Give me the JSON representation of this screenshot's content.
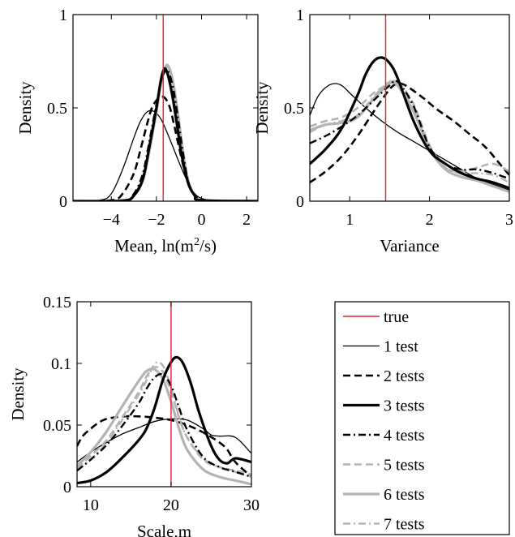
{
  "chart_data": [
    {
      "type": "line",
      "title": "",
      "xlabel": "Mean, ln(m",
      "xlabel_sup": "2",
      "xlabel_tail": "/s)",
      "ylabel": "Density",
      "xlim": [
        -5.7,
        2.5
      ],
      "ylim": [
        0,
        1
      ],
      "xticks": [
        -4,
        -2,
        0,
        2
      ],
      "xtick_labels": [
        "−4",
        "−2",
        "0",
        "2"
      ],
      "yticks": [
        0,
        0.5,
        1
      ],
      "ytick_labels": [
        "0",
        "0.5",
        "1"
      ],
      "true_value": -1.7,
      "series": [
        {
          "name": "1 test",
          "x": [
            -5.7,
            -4.5,
            -4.0,
            -3.5,
            -3.0,
            -2.7,
            -2.4,
            -2.1,
            -1.8,
            -1.5,
            -1.2,
            -0.9,
            -0.6,
            -0.3,
            0.0,
            0.5,
            1.0,
            2.5
          ],
          "y": [
            0,
            0.005,
            0.04,
            0.17,
            0.34,
            0.43,
            0.48,
            0.48,
            0.44,
            0.36,
            0.27,
            0.18,
            0.1,
            0.04,
            0.015,
            0.003,
            0,
            0
          ]
        },
        {
          "name": "2 tests",
          "x": [
            -5.7,
            -4.0,
            -3.5,
            -3.0,
            -2.7,
            -2.4,
            -2.2,
            -2.0,
            -1.8,
            -1.6,
            -1.4,
            -1.2,
            -1.0,
            -0.7,
            -0.4,
            0.0,
            0.5,
            2.5
          ],
          "y": [
            0,
            0.005,
            0.04,
            0.15,
            0.28,
            0.42,
            0.5,
            0.54,
            0.56,
            0.55,
            0.5,
            0.4,
            0.29,
            0.14,
            0.05,
            0.01,
            0,
            0
          ]
        },
        {
          "name": "3 tests",
          "x": [
            -5.7,
            -3.5,
            -3.0,
            -2.6,
            -2.3,
            -2.0,
            -1.8,
            -1.65,
            -1.5,
            -1.3,
            -1.1,
            -0.9,
            -0.6,
            -0.3,
            0.0,
            2.5
          ],
          "y": [
            0,
            0.003,
            0.03,
            0.12,
            0.3,
            0.5,
            0.65,
            0.71,
            0.68,
            0.57,
            0.42,
            0.26,
            0.1,
            0.03,
            0.005,
            0
          ]
        },
        {
          "name": "4 tests",
          "x": [
            -5.7,
            -3.5,
            -3.0,
            -2.6,
            -2.3,
            -2.0,
            -1.8,
            -1.6,
            -1.45,
            -1.25,
            -1.05,
            -0.85,
            -0.6,
            -0.3,
            0.0,
            2.5
          ],
          "y": [
            0,
            0.004,
            0.04,
            0.15,
            0.33,
            0.52,
            0.64,
            0.7,
            0.69,
            0.6,
            0.45,
            0.28,
            0.11,
            0.03,
            0.005,
            0
          ]
        },
        {
          "name": "5 tests",
          "x": [
            -5.7,
            -3.5,
            -3.0,
            -2.6,
            -2.3,
            -2.0,
            -1.8,
            -1.6,
            -1.45,
            -1.25,
            -1.05,
            -0.85,
            -0.6,
            -0.3,
            0.0,
            2.5
          ],
          "y": [
            0,
            0.003,
            0.035,
            0.13,
            0.3,
            0.49,
            0.63,
            0.71,
            0.71,
            0.62,
            0.46,
            0.29,
            0.12,
            0.03,
            0.005,
            0
          ]
        },
        {
          "name": "6 tests",
          "x": [
            -5.7,
            -3.5,
            -3.0,
            -2.6,
            -2.3,
            -2.0,
            -1.8,
            -1.6,
            -1.45,
            -1.25,
            -1.05,
            -0.85,
            -0.6,
            -0.3,
            0.0,
            2.5
          ],
          "y": [
            0,
            0.002,
            0.03,
            0.11,
            0.28,
            0.48,
            0.63,
            0.72,
            0.72,
            0.63,
            0.47,
            0.29,
            0.11,
            0.03,
            0.004,
            0
          ]
        },
        {
          "name": "7 tests",
          "x": [
            -5.7,
            -3.5,
            -3.0,
            -2.6,
            -2.3,
            -2.0,
            -1.8,
            -1.6,
            -1.45,
            -1.25,
            -1.05,
            -0.85,
            -0.6,
            -0.3,
            0.0,
            2.5
          ],
          "y": [
            0,
            0.003,
            0.03,
            0.12,
            0.29,
            0.49,
            0.64,
            0.72,
            0.72,
            0.63,
            0.47,
            0.29,
            0.11,
            0.03,
            0.005,
            0
          ]
        }
      ]
    },
    {
      "type": "line",
      "title": "",
      "xlabel": "Variance",
      "ylabel": "Density",
      "xlim": [
        0.5,
        3.0
      ],
      "ylim": [
        0,
        1
      ],
      "xticks": [
        1,
        2,
        3
      ],
      "xtick_labels": [
        "1",
        "2",
        "3"
      ],
      "yticks": [
        0,
        0.5,
        1
      ],
      "ytick_labels": [
        "0",
        "0.5",
        "1"
      ],
      "true_value": 1.45,
      "series": [
        {
          "name": "1 test",
          "x": [
            0.5,
            0.6,
            0.7,
            0.8,
            0.9,
            1.0,
            1.2,
            1.4,
            1.6,
            1.8,
            2.0,
            2.2,
            2.4,
            2.6,
            2.8,
            3.0
          ],
          "y": [
            0.46,
            0.56,
            0.61,
            0.63,
            0.62,
            0.58,
            0.5,
            0.43,
            0.37,
            0.32,
            0.27,
            0.22,
            0.17,
            0.12,
            0.09,
            0.06
          ]
        },
        {
          "name": "2 tests",
          "x": [
            0.5,
            0.7,
            0.9,
            1.1,
            1.3,
            1.5,
            1.6,
            1.7,
            1.9,
            2.1,
            2.3,
            2.5,
            2.7,
            2.9,
            3.0
          ],
          "y": [
            0.1,
            0.16,
            0.24,
            0.35,
            0.48,
            0.6,
            0.63,
            0.62,
            0.56,
            0.49,
            0.43,
            0.36,
            0.29,
            0.19,
            0.14
          ]
        },
        {
          "name": "3 tests",
          "x": [
            0.5,
            0.7,
            0.9,
            1.1,
            1.2,
            1.3,
            1.4,
            1.5,
            1.6,
            1.8,
            2.0,
            2.2,
            2.4,
            2.6,
            2.8,
            3.0
          ],
          "y": [
            0.2,
            0.28,
            0.39,
            0.57,
            0.68,
            0.75,
            0.77,
            0.74,
            0.66,
            0.43,
            0.27,
            0.2,
            0.15,
            0.12,
            0.1,
            0.07
          ]
        },
        {
          "name": "4 tests",
          "x": [
            0.5,
            0.7,
            0.9,
            1.1,
            1.3,
            1.5,
            1.6,
            1.8,
            2.0,
            2.2,
            2.4,
            2.6,
            2.8,
            3.0
          ],
          "y": [
            0.31,
            0.35,
            0.4,
            0.46,
            0.54,
            0.62,
            0.64,
            0.51,
            0.29,
            0.2,
            0.17,
            0.17,
            0.15,
            0.12
          ]
        },
        {
          "name": "5 tests",
          "x": [
            0.5,
            0.7,
            0.9,
            1.1,
            1.3,
            1.5,
            1.6,
            1.8,
            2.0,
            2.2,
            2.4,
            2.6,
            2.8,
            3.0
          ],
          "y": [
            0.4,
            0.43,
            0.45,
            0.5,
            0.58,
            0.63,
            0.64,
            0.52,
            0.3,
            0.18,
            0.16,
            0.18,
            0.2,
            0.16
          ]
        },
        {
          "name": "6 tests",
          "x": [
            0.5,
            0.7,
            0.9,
            1.1,
            1.3,
            1.5,
            1.6,
            1.8,
            2.0,
            2.2,
            2.4,
            2.6,
            2.8,
            3.0
          ],
          "y": [
            0.38,
            0.41,
            0.42,
            0.45,
            0.55,
            0.63,
            0.62,
            0.48,
            0.28,
            0.17,
            0.13,
            0.11,
            0.08,
            0.05
          ]
        },
        {
          "name": "7 tests",
          "x": [
            0.5,
            0.7,
            0.9,
            1.1,
            1.3,
            1.5,
            1.6,
            1.8,
            2.0,
            2.2,
            2.4,
            2.6,
            2.8,
            3.0
          ],
          "y": [
            0.37,
            0.41,
            0.43,
            0.46,
            0.56,
            0.64,
            0.63,
            0.49,
            0.29,
            0.18,
            0.15,
            0.15,
            0.14,
            0.1
          ]
        }
      ]
    },
    {
      "type": "line",
      "title": "",
      "xlabel": "Scale,m",
      "ylabel": "Density",
      "xlim": [
        8.3,
        30
      ],
      "ylim": [
        0,
        0.15
      ],
      "xticks": [
        10,
        20,
        30
      ],
      "xtick_labels": [
        "10",
        "20",
        "30"
      ],
      "yticks": [
        0,
        0.05,
        0.1,
        0.15
      ],
      "ytick_labels": [
        "0",
        "0.05",
        "0.1",
        "0.15"
      ],
      "true_value": 20,
      "series": [
        {
          "name": "1 test",
          "x": [
            8.3,
            10,
            12,
            14,
            16,
            18,
            20,
            22,
            24,
            25,
            26,
            28,
            30
          ],
          "y": [
            0.02,
            0.028,
            0.036,
            0.043,
            0.048,
            0.053,
            0.055,
            0.054,
            0.047,
            0.042,
            0.041,
            0.04,
            0.027
          ]
        },
        {
          "name": "2 tests",
          "x": [
            8.3,
            9,
            10,
            11,
            12,
            14,
            16,
            18,
            20,
            22,
            24,
            26,
            27,
            28,
            30
          ],
          "y": [
            0.033,
            0.041,
            0.047,
            0.052,
            0.055,
            0.057,
            0.057,
            0.056,
            0.054,
            0.05,
            0.044,
            0.036,
            0.03,
            0.02,
            0.008
          ]
        },
        {
          "name": "3 tests",
          "x": [
            8.3,
            10,
            12,
            14,
            16,
            17,
            18,
            19,
            20,
            20.7,
            21.5,
            22.5,
            23.5,
            25,
            26,
            27,
            28,
            30
          ],
          "y": [
            0.003,
            0.005,
            0.012,
            0.024,
            0.038,
            0.048,
            0.065,
            0.087,
            0.101,
            0.105,
            0.1,
            0.083,
            0.06,
            0.033,
            0.022,
            0.019,
            0.023,
            0.02
          ]
        },
        {
          "name": "4 tests",
          "x": [
            8.3,
            10,
            12,
            14,
            16,
            17,
            18,
            19,
            20,
            21,
            22,
            24,
            26,
            28,
            30
          ],
          "y": [
            0.013,
            0.022,
            0.034,
            0.05,
            0.068,
            0.08,
            0.089,
            0.091,
            0.082,
            0.064,
            0.046,
            0.024,
            0.016,
            0.012,
            0.008
          ]
        },
        {
          "name": "5 tests",
          "x": [
            8.3,
            10,
            12,
            14,
            16,
            17,
            18,
            19,
            20,
            21,
            22,
            24,
            26,
            28,
            30
          ],
          "y": [
            0.015,
            0.025,
            0.038,
            0.057,
            0.077,
            0.09,
            0.097,
            0.093,
            0.077,
            0.056,
            0.04,
            0.022,
            0.016,
            0.013,
            0.01
          ]
        },
        {
          "name": "6 tests",
          "x": [
            8.3,
            10,
            12,
            14,
            16,
            17,
            18,
            19,
            20,
            21,
            22,
            24,
            26,
            28,
            30
          ],
          "y": [
            0.017,
            0.028,
            0.045,
            0.066,
            0.086,
            0.094,
            0.095,
            0.087,
            0.069,
            0.047,
            0.03,
            0.014,
            0.008,
            0.005,
            0.002
          ]
        },
        {
          "name": "7 tests",
          "x": [
            8.3,
            10,
            12,
            14,
            16,
            17,
            18,
            19,
            20,
            21,
            22,
            24,
            26,
            28,
            30
          ],
          "y": [
            0.014,
            0.022,
            0.036,
            0.055,
            0.075,
            0.087,
            0.1,
            0.098,
            0.08,
            0.057,
            0.04,
            0.023,
            0.016,
            0.012,
            0.008
          ]
        }
      ]
    }
  ],
  "legend": {
    "entries": [
      {
        "label": "true",
        "style": "true"
      },
      {
        "label": "1 test",
        "style": "s1"
      },
      {
        "label": "2 tests",
        "style": "s2"
      },
      {
        "label": "3 tests",
        "style": "s3"
      },
      {
        "label": "4 tests",
        "style": "s4"
      },
      {
        "label": "5 tests",
        "style": "s5"
      },
      {
        "label": "6 tests",
        "style": "s6"
      },
      {
        "label": "7 tests",
        "style": "s7"
      }
    ]
  },
  "colors": {
    "true_line": "#e8202a",
    "black": "#000000",
    "gray": "#b3b3b3"
  }
}
